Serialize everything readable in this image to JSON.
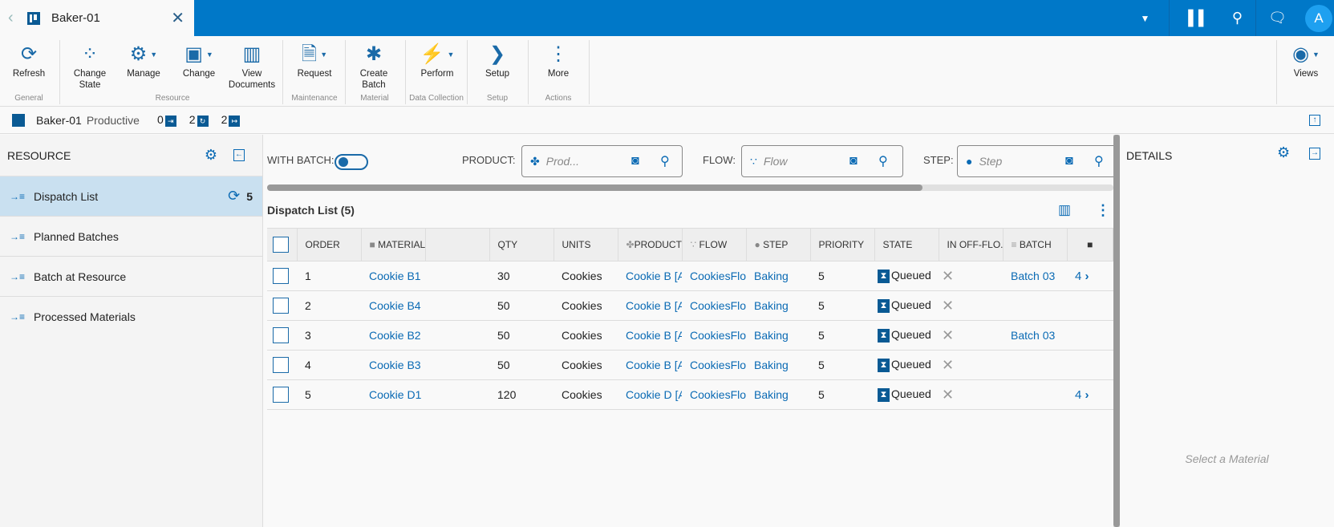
{
  "tab": {
    "title": "Baker-01",
    "back_icon": "chevron-left-icon",
    "close_icon": "close-icon"
  },
  "topbar": {
    "icons": [
      "dropdown-icon",
      "barcode-icon",
      "search-icon",
      "chat-icon"
    ],
    "avatar": "A"
  },
  "toolbar": {
    "buttons": [
      {
        "label": "Refresh",
        "icon": "refresh-icon"
      },
      {
        "label": "Change State",
        "icon": "change-state-icon"
      },
      {
        "label": "Manage",
        "icon": "gear-icon"
      },
      {
        "label": "Change",
        "icon": "swap-icon"
      },
      {
        "label": "View Documents",
        "icon": "document-icon"
      },
      {
        "label": "Request",
        "icon": "request-icon"
      },
      {
        "label": "Create Batch",
        "icon": "asterisk-icon"
      },
      {
        "label": "Perform",
        "icon": "lightning-icon"
      },
      {
        "label": "Setup",
        "icon": "chevron-right-icon"
      },
      {
        "label": "More",
        "icon": "more-icon"
      },
      {
        "label": "Views",
        "icon": "eye-icon"
      }
    ],
    "groups": [
      "General",
      "Resource",
      "Maintenance",
      "Material",
      "Data Collection",
      "Setup",
      "Actions"
    ]
  },
  "infobar": {
    "name": "Baker-01",
    "state": "Productive",
    "count_in": "0",
    "count_process": "2",
    "count_out": "2"
  },
  "left": {
    "title": "RESOURCE",
    "items": [
      {
        "label": "Dispatch List",
        "count": "5",
        "selected": true
      },
      {
        "label": "Planned Batches"
      },
      {
        "label": "Batch at Resource"
      },
      {
        "label": "Processed Materials"
      }
    ]
  },
  "filters": {
    "with_batch": "WITH BATCH:",
    "with_batch_on": false,
    "product_label": "PRODUCT:",
    "product_placeholder": "Prod...",
    "flow_label": "FLOW:",
    "flow_placeholder": "Flow",
    "step_label": "STEP:",
    "step_placeholder": "Step"
  },
  "list": {
    "title": "Dispatch List (5)",
    "columns": [
      "ORDER",
      "MATERIAL",
      "",
      "QTY",
      "UNITS",
      "PRODUCT",
      "FLOW",
      "STEP",
      "PRIORITY",
      "STATE",
      "IN OFF-FLO...",
      "BATCH",
      ""
    ],
    "rows": [
      {
        "order": "1",
        "material": "Cookie B1",
        "qty": "30",
        "units": "Cookies",
        "product": "Cookie B [A",
        "flow": "CookiesFlo",
        "step": "Baking",
        "priority": "5",
        "state": "Queued",
        "batch": "Batch 03",
        "sub": "4"
      },
      {
        "order": "2",
        "material": "Cookie B4",
        "qty": "50",
        "units": "Cookies",
        "product": "Cookie B [A",
        "flow": "CookiesFlo",
        "step": "Baking",
        "priority": "5",
        "state": "Queued",
        "batch": "",
        "sub": ""
      },
      {
        "order": "3",
        "material": "Cookie B2",
        "qty": "50",
        "units": "Cookies",
        "product": "Cookie B [A",
        "flow": "CookiesFlo",
        "step": "Baking",
        "priority": "5",
        "state": "Queued",
        "batch": "Batch 03",
        "sub": ""
      },
      {
        "order": "4",
        "material": "Cookie B3",
        "qty": "50",
        "units": "Cookies",
        "product": "Cookie B [A",
        "flow": "CookiesFlo",
        "step": "Baking",
        "priority": "5",
        "state": "Queued",
        "batch": "",
        "sub": ""
      },
      {
        "order": "5",
        "material": "Cookie D1",
        "qty": "120",
        "units": "Cookies",
        "product": "Cookie D [A",
        "flow": "CookiesFlo",
        "step": "Baking",
        "priority": "5",
        "state": "Queued",
        "batch": "",
        "sub": "4"
      }
    ]
  },
  "details": {
    "title": "DETAILS",
    "empty": "Select a Material"
  },
  "colors": {
    "brand": "#0078c8",
    "accent": "#0a6ab4",
    "selected": "#c9e0f0"
  }
}
